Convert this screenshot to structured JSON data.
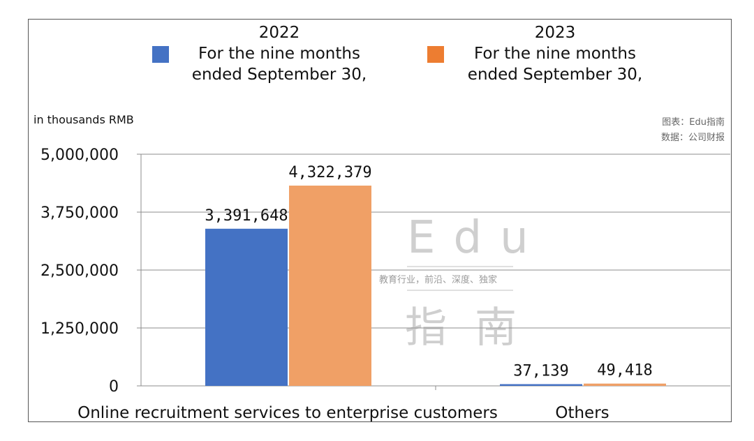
{
  "unit_label": "in thousands RMB",
  "credit": {
    "chart_line": "图表：Edu指南",
    "source_line": "数据：公司财报"
  },
  "watermark": {
    "brand": "Edu",
    "tagline": "教育行业，前沿、深度、独家",
    "cjk": "指南"
  },
  "legend": [
    {
      "year": "2022",
      "line1": "For the nine months",
      "line2": "ended September 30,",
      "color": "#4472C4"
    },
    {
      "year": "2023",
      "line1": "For the nine months",
      "line2": "ended September 30,",
      "color": "#ED7D31"
    }
  ],
  "chart_data": {
    "type": "bar",
    "categories": [
      "Online recruitment services to enterprise customers",
      "Others"
    ],
    "series": [
      {
        "name": "2022 For the nine months ended September 30,",
        "values": [
          3391648,
          37139
        ],
        "color": "#4472C4"
      },
      {
        "name": "2023 For the nine months ended September 30,",
        "values": [
          4322379,
          49418
        ],
        "color": "#F0A066"
      }
    ],
    "data_labels": [
      [
        "3,391,648",
        "37,139"
      ],
      [
        "4,322,379",
        "49,418"
      ]
    ],
    "ylim": [
      0,
      5000000
    ],
    "yticks": [
      0,
      1250000,
      2500000,
      3750000,
      5000000
    ],
    "ytick_labels": [
      "0",
      "1,250,000",
      "2,500,000",
      "3,750,000",
      "5,000,000"
    ],
    "grid": true,
    "legend_position": "top"
  }
}
